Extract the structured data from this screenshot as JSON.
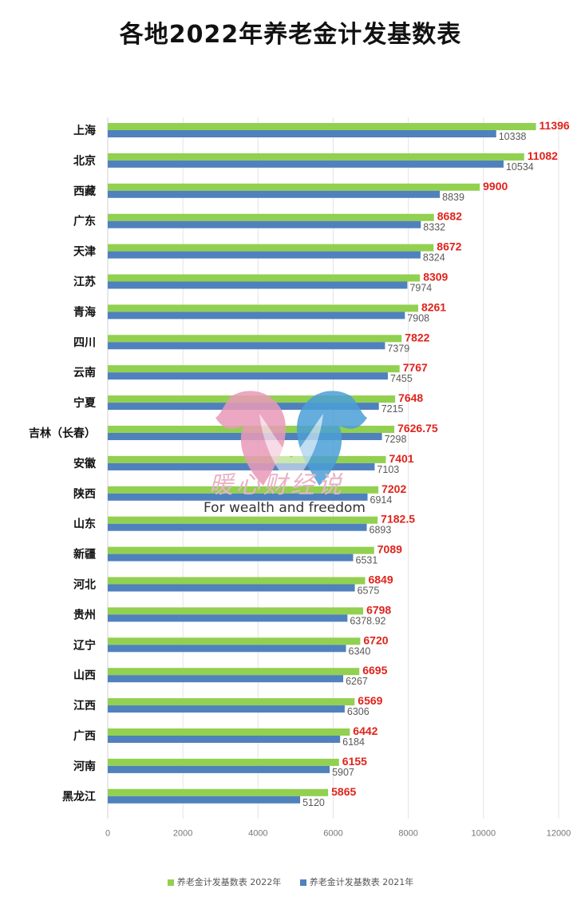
{
  "title": "各地2022年养老金计发基数表",
  "legend": {
    "series_2022": "养老金计发基数表 2022年",
    "series_2021": "养老金计发基数表 2021年"
  },
  "watermark": {
    "text_cn": "暖心财经说",
    "text_en": "For wealth and freedom"
  },
  "colors": {
    "series_2022": "#92d050",
    "series_2021": "#4f81bd",
    "label_2022": "#e0231b",
    "label_2021": "#595959",
    "grid": "#e3e3e3"
  },
  "chart_data": {
    "type": "bar",
    "orientation": "horizontal",
    "title": "各地2022年养老金计发基数表",
    "categories": [
      "上海",
      "北京",
      "西藏",
      "广东",
      "天津",
      "江苏",
      "青海",
      "四川",
      "云南",
      "宁夏",
      "吉林（长春）",
      "安徽",
      "陕西",
      "山东",
      "新疆",
      "河北",
      "贵州",
      "辽宁",
      "山西",
      "江西",
      "广西",
      "河南",
      "黑龙江"
    ],
    "series": [
      {
        "name": "养老金计发基数表 2022年",
        "values": [
          "11396",
          "11082",
          "9900",
          "8682",
          "8672",
          "8309",
          "8261",
          "7822",
          "7767",
          "7648",
          "7626.75",
          "7401",
          "7202",
          "7182.5",
          "7089",
          "6849",
          "6798",
          "6720",
          "6695",
          "6569",
          "6442",
          "6155",
          "5865"
        ]
      },
      {
        "name": "养老金计发基数表 2021年",
        "values": [
          "10338",
          "10534",
          "8839",
          "8332",
          "8324",
          "7974",
          "7908",
          "7379",
          "7455",
          "7215",
          "7298",
          "7103",
          "6914",
          "6893",
          "6531",
          "6575",
          "6378.92",
          "6340",
          "6267",
          "6306",
          "6184",
          "5907",
          "5120"
        ]
      }
    ],
    "xlim": [
      0,
      12000
    ],
    "xticks": [
      "0",
      "2000",
      "4000",
      "6000",
      "8000",
      "10000",
      "12000"
    ],
    "grid": true,
    "legend_position": "bottom"
  }
}
